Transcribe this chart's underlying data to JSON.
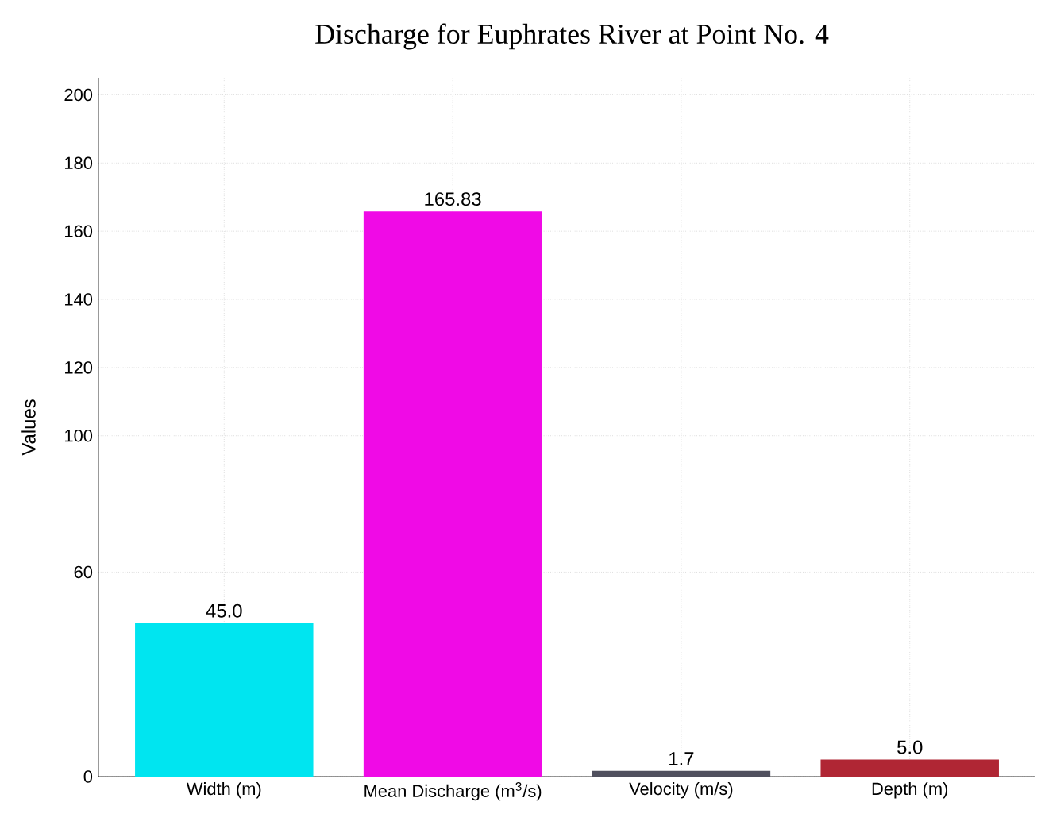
{
  "chart_data": {
    "type": "bar",
    "title": "Discharge for Euphrates River at Point No. 4",
    "ylabel": "Values",
    "categories": [
      "Width (m)",
      "Mean Discharge (m$^{3}$/s)",
      "Velocity (m/s)",
      "Depth (m)"
    ],
    "values": [
      45.0,
      165.83,
      1.7,
      5.0
    ],
    "colors": [
      "#00e5f0",
      "#f00ae6",
      "#50505e",
      "#b02634"
    ],
    "value_labels": [
      "45.0",
      "165.83",
      "1.7",
      "5.0"
    ],
    "ylim": [
      0,
      205
    ],
    "yticks": [
      0,
      60,
      100,
      120,
      140,
      160,
      180,
      200
    ],
    "grid": true
  }
}
